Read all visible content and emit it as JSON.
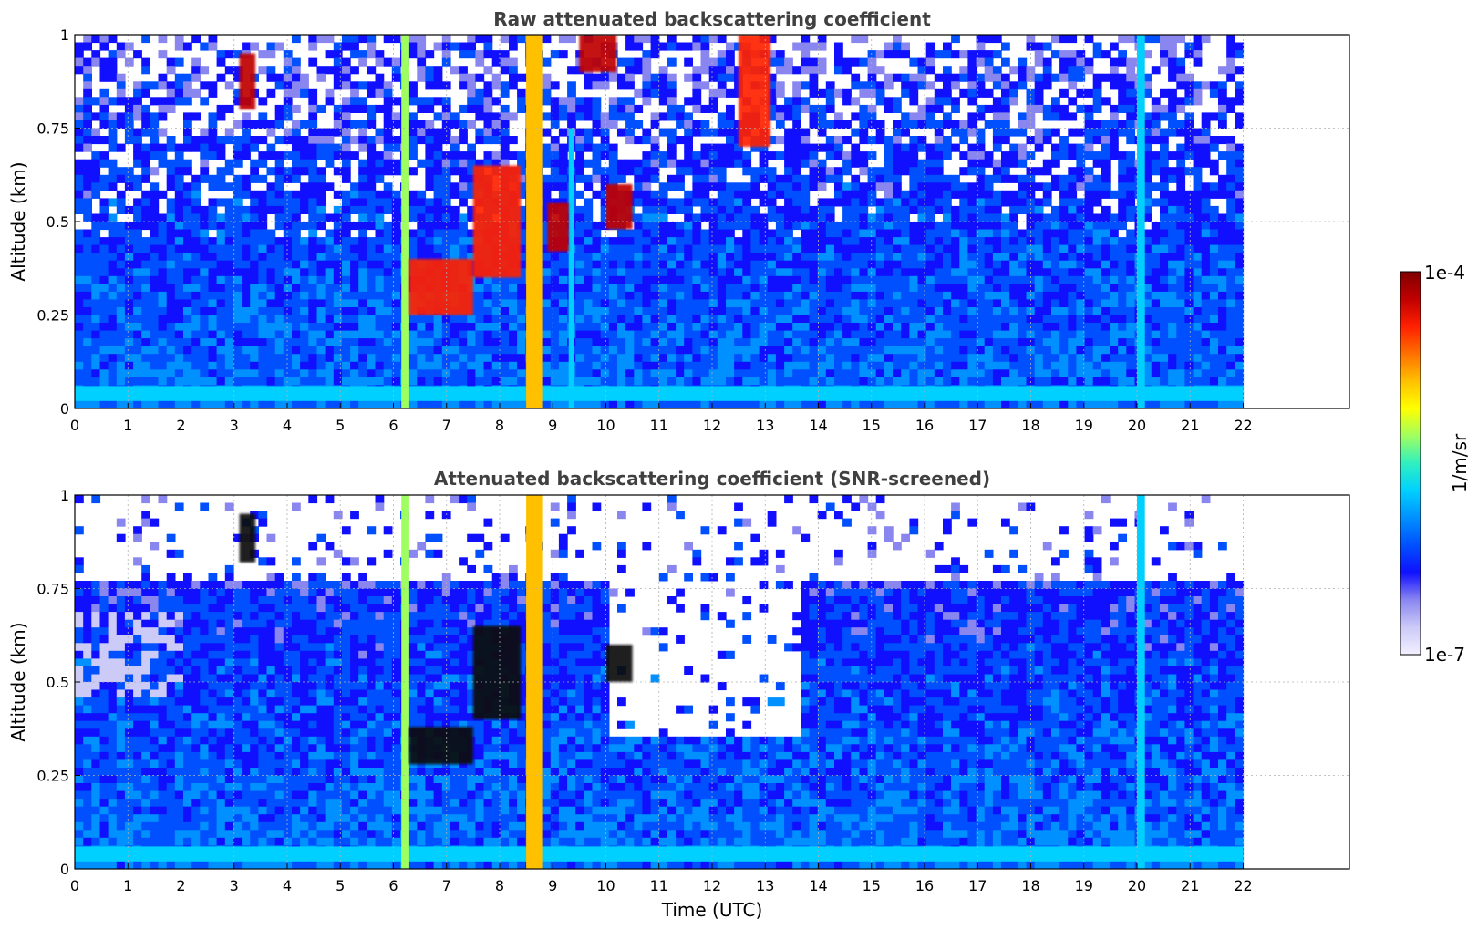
{
  "colors": {
    "background": "#ffffff",
    "title": "#404040",
    "grid": "#b0b0b0",
    "colormap": [
      "#f2f0ff",
      "#cccaf7",
      "#8a86f0",
      "#1010ff",
      "#0050ff",
      "#0090ff",
      "#00d0ff",
      "#30f0c0",
      "#a0ff60",
      "#ffff00",
      "#ffc000",
      "#ff7000",
      "#ff2000",
      "#c00000",
      "#800000"
    ]
  },
  "colorbar": {
    "label": "1/m/sr",
    "max_label": "1e-4",
    "min_label": "1e-7",
    "range": [
      1e-07,
      0.0001
    ],
    "scale": "log"
  },
  "chart_data": [
    {
      "type": "heatmap",
      "title": "Raw attenuated backscattering coefficient",
      "xlabel": "",
      "ylabel": "Altitude (km)",
      "xlim": [
        0,
        24
      ],
      "ylim": [
        0,
        1
      ],
      "x_ticks": [
        "0",
        "1",
        "2",
        "3",
        "4",
        "5",
        "6",
        "7",
        "8",
        "9",
        "10",
        "11",
        "12",
        "13",
        "14",
        "15",
        "16",
        "17",
        "18",
        "19",
        "20",
        "21",
        "22"
      ],
      "y_ticks": [
        "0",
        "0.25",
        "0.5",
        "0.75",
        "1"
      ],
      "grid": true,
      "data_end_time": 22,
      "layers": [
        {
          "name": "near-surface band",
          "x": [
            0,
            22
          ],
          "y": [
            0.02,
            0.06
          ],
          "level": 0.45
        },
        {
          "name": "column",
          "x": [
            6.15,
            6.3
          ],
          "y": [
            0,
            1
          ],
          "level": 0.55
        },
        {
          "name": "column",
          "x": [
            8.5,
            8.8
          ],
          "y": [
            0,
            1
          ],
          "level": 0.72
        },
        {
          "name": "column",
          "x": [
            9.3,
            9.4
          ],
          "y": [
            0,
            0.75
          ],
          "level": 0.45
        },
        {
          "name": "column",
          "x": [
            20.0,
            20.15
          ],
          "y": [
            0,
            1
          ],
          "level": 0.4
        },
        {
          "name": "cloud",
          "x": [
            3.1,
            3.4
          ],
          "y": [
            0.8,
            0.95
          ],
          "level": 0.95
        },
        {
          "name": "cloud",
          "x": [
            6.3,
            7.5
          ],
          "y": [
            0.25,
            0.4
          ],
          "level": 0.85
        },
        {
          "name": "cloud",
          "x": [
            7.5,
            8.4
          ],
          "y": [
            0.35,
            0.65
          ],
          "level": 0.85
        },
        {
          "name": "cloud",
          "x": [
            8.9,
            9.3
          ],
          "y": [
            0.42,
            0.55
          ],
          "level": 0.9
        },
        {
          "name": "cloud",
          "x": [
            9.5,
            10.2
          ],
          "y": [
            0.9,
            1.0
          ],
          "level": 0.9
        },
        {
          "name": "cloud",
          "x": [
            10.0,
            10.5
          ],
          "y": [
            0.48,
            0.6
          ],
          "level": 0.95
        },
        {
          "name": "cloud",
          "x": [
            12.5,
            13.1
          ],
          "y": [
            0.7,
            1.0
          ],
          "level": 0.85
        }
      ]
    },
    {
      "type": "heatmap",
      "title": "Attenuated backscattering coefficient (SNR-screened)",
      "xlabel": "Time (UTC)",
      "ylabel": "Altitude (km)",
      "xlim": [
        0,
        24
      ],
      "ylim": [
        0,
        1
      ],
      "x_ticks": [
        "0",
        "1",
        "2",
        "3",
        "4",
        "5",
        "6",
        "7",
        "8",
        "9",
        "10",
        "11",
        "12",
        "13",
        "14",
        "15",
        "16",
        "17",
        "18",
        "19",
        "20",
        "21",
        "22"
      ],
      "y_ticks": [
        "0",
        "0.25",
        "0.5",
        "0.75",
        "1"
      ],
      "grid": true,
      "data_end_time": 22,
      "layers": [
        {
          "name": "near-surface band",
          "x": [
            0,
            22
          ],
          "y": [
            0.02,
            0.06
          ],
          "level": 0.45
        },
        {
          "name": "column",
          "x": [
            6.15,
            6.3
          ],
          "y": [
            0,
            1
          ],
          "level": 0.55
        },
        {
          "name": "column",
          "x": [
            8.5,
            8.8
          ],
          "y": [
            0,
            1
          ],
          "level": 0.72
        },
        {
          "name": "column",
          "x": [
            20.0,
            20.15
          ],
          "y": [
            0,
            1
          ],
          "level": 0.4
        },
        {
          "name": "cloud",
          "x": [
            3.1,
            3.4
          ],
          "y": [
            0.82,
            0.95
          ],
          "level": 1.0
        },
        {
          "name": "cloud",
          "x": [
            6.3,
            7.5
          ],
          "y": [
            0.28,
            0.38
          ],
          "level": 1.0
        },
        {
          "name": "cloud",
          "x": [
            7.5,
            8.4
          ],
          "y": [
            0.4,
            0.65
          ],
          "level": 1.0
        },
        {
          "name": "cloud",
          "x": [
            10.0,
            10.5
          ],
          "y": [
            0.5,
            0.6
          ],
          "level": 1.0
        }
      ]
    }
  ]
}
